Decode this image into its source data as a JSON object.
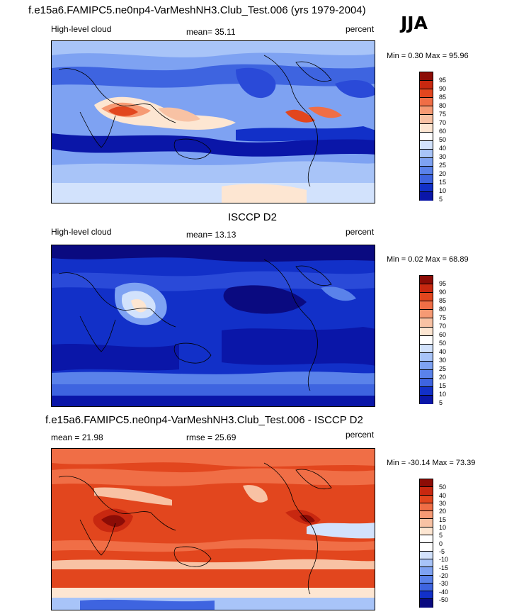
{
  "panel1": {
    "title": "f.e15a6.FAMIPC5.ne0np4-VarMeshNH3.Club_Test.006 (yrs 1979-2004)",
    "season": "JJA",
    "variable": "High-level cloud",
    "mean": "mean=  35.11",
    "units": "percent",
    "minmax": "Min =   0.30 Max =  95.96",
    "ticks": [
      "95",
      "90",
      "85",
      "80",
      "75",
      "70",
      "60",
      "50",
      "40",
      "30",
      "25",
      "20",
      "15",
      "10",
      "5"
    ]
  },
  "panel2": {
    "title": "ISCCP D2",
    "variable": "High-level cloud",
    "mean": "mean=  13.13",
    "units": "percent",
    "minmax": "Min =   0.02 Max =  68.89",
    "ticks": [
      "95",
      "90",
      "85",
      "80",
      "75",
      "70",
      "60",
      "50",
      "40",
      "30",
      "25",
      "20",
      "15",
      "10",
      "5"
    ]
  },
  "panel3": {
    "title": "f.e15a6.FAMIPC5.ne0np4-VarMeshNH3.Club_Test.006 - ISCCP D2",
    "mean": "mean =  21.98",
    "rmse": "rmse =  25.69",
    "units": "percent",
    "minmax": "Min = -30.14 Max =  73.39",
    "ticks": [
      "50",
      "40",
      "30",
      "20",
      "15",
      "10",
      "5",
      "0",
      "-5",
      "-10",
      "-15",
      "-20",
      "-30",
      "-40",
      "-50"
    ]
  },
  "colors": {
    "scale": [
      "#0a0a80",
      "#0a16a8",
      "#1230c8",
      "#2a4ad8",
      "#3e64e0",
      "#5a82ea",
      "#7ea2f2",
      "#a8c4f8",
      "#d2e2fc",
      "#fde6d2",
      "#f8c2a4",
      "#f69a74",
      "#f06e46",
      "#e2461e",
      "#c82810",
      "#8c0c06"
    ]
  }
}
